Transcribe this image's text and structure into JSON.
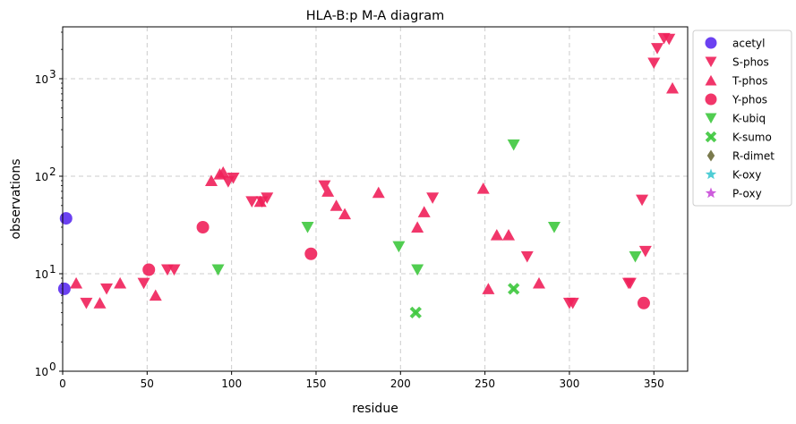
{
  "chart_data": {
    "type": "scatter",
    "title": "HLA-B:p M-A diagram",
    "xlabel": "residue",
    "ylabel": "observations",
    "xlim": [
      0,
      370
    ],
    "ylim": [
      1,
      3500
    ],
    "yscale": "log",
    "grid": true,
    "legend_position": "outside-right",
    "x_ticks": [
      0,
      50,
      100,
      150,
      200,
      250,
      300,
      350
    ],
    "y_ticks": [
      {
        "value": 1,
        "label": "10^0"
      },
      {
        "value": 10,
        "label": "10^1"
      },
      {
        "value": 100,
        "label": "10^2"
      },
      {
        "value": 1000,
        "label": "10^3"
      }
    ],
    "series": [
      {
        "name": "acetyl",
        "marker": "circle",
        "color": "#5b2cf0",
        "points": [
          [
            2,
            37
          ],
          [
            1,
            7
          ]
        ]
      },
      {
        "name": "S-phos",
        "marker": "triangle-down",
        "color": "#f0205a",
        "points": [
          [
            14,
            5
          ],
          [
            26,
            7
          ],
          [
            48,
            8
          ],
          [
            62,
            11
          ],
          [
            66,
            11
          ],
          [
            98,
            88
          ],
          [
            101,
            96
          ],
          [
            112,
            55
          ],
          [
            118,
            55
          ],
          [
            121,
            60
          ],
          [
            155,
            80
          ],
          [
            219,
            60
          ],
          [
            275,
            15
          ],
          [
            300,
            5
          ],
          [
            302,
            5
          ],
          [
            335,
            8
          ],
          [
            336,
            8
          ],
          [
            343,
            57
          ],
          [
            345,
            17
          ],
          [
            350,
            1450
          ],
          [
            352,
            2050
          ],
          [
            356,
            2600
          ],
          [
            359,
            2550
          ]
        ]
      },
      {
        "name": "T-phos",
        "marker": "triangle-up",
        "color": "#f0205a",
        "points": [
          [
            8,
            8
          ],
          [
            22,
            5
          ],
          [
            34,
            8
          ],
          [
            55,
            6
          ],
          [
            88,
            90
          ],
          [
            93,
            105
          ],
          [
            95,
            110
          ],
          [
            117,
            55
          ],
          [
            157,
            70
          ],
          [
            162,
            50
          ],
          [
            167,
            41
          ],
          [
            187,
            68
          ],
          [
            210,
            30
          ],
          [
            214,
            43
          ],
          [
            249,
            75
          ],
          [
            252,
            7
          ],
          [
            257,
            25
          ],
          [
            264,
            25
          ],
          [
            282,
            8
          ],
          [
            361,
            800
          ]
        ]
      },
      {
        "name": "Y-phos",
        "marker": "circle",
        "color": "#f0205a",
        "points": [
          [
            51,
            11
          ],
          [
            83,
            30
          ],
          [
            147,
            16
          ],
          [
            344,
            5
          ]
        ]
      },
      {
        "name": "K-ubiq",
        "marker": "triangle-down",
        "color": "#3ec83e",
        "points": [
          [
            92,
            11
          ],
          [
            145,
            30
          ],
          [
            199,
            19
          ],
          [
            210,
            11
          ],
          [
            267,
            210
          ],
          [
            291,
            30
          ],
          [
            339,
            15
          ]
        ]
      },
      {
        "name": "K-sumo",
        "marker": "x",
        "color": "#3ec83e",
        "points": [
          [
            209,
            4
          ],
          [
            267,
            7
          ]
        ]
      },
      {
        "name": "R-dimet",
        "marker": "diamond",
        "color": "#6b6b3a",
        "points": []
      },
      {
        "name": "K-oxy",
        "marker": "star",
        "color": "#3cc8d0",
        "points": []
      },
      {
        "name": "P-oxy",
        "marker": "star",
        "color": "#c84ad8",
        "points": []
      }
    ]
  }
}
